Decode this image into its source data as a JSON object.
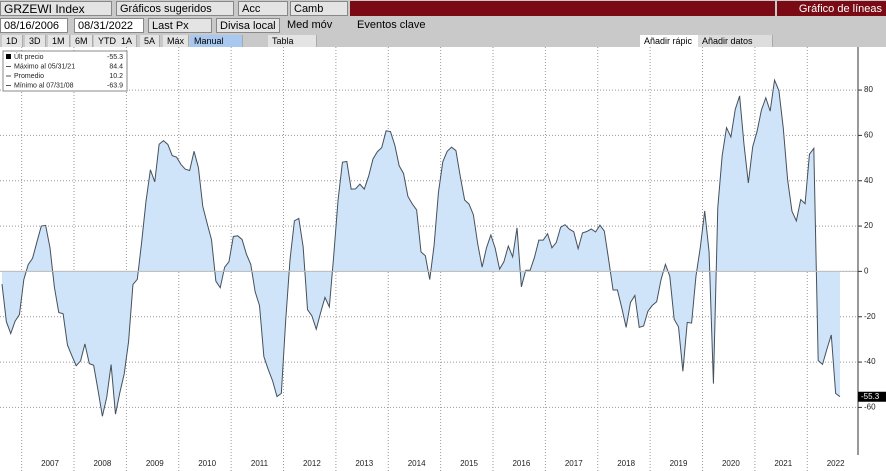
{
  "toolbar": {
    "ticker": "GRZEWI Index",
    "suggested": "Gráficos sugeridos",
    "actions": "Acc",
    "change": "Camb",
    "chart_kind": "Gráfico de líneas",
    "start_date": "08/16/2006",
    "end_date": "08/31/2022",
    "field": "Last Px",
    "currency": "Divisa local",
    "moving_avg": "Med móv",
    "key_events": "Eventos clave",
    "ranges": [
      "1D",
      "3D",
      "1M",
      "6M",
      "YTD",
      "1A",
      "5A",
      "Máx"
    ],
    "manual": "Manual",
    "table": "Tabla",
    "quick_add": "Añadir rápic",
    "add_data": "Añadir datos"
  },
  "chart_data": {
    "type": "area",
    "color": "#45505c",
    "fill": "#cfe4f8",
    "grid": true,
    "legend": [
      {
        "label": "Últ precio",
        "value": -55.3
      },
      {
        "label": "Máximo al 05/31/21",
        "value": 84.4
      },
      {
        "label": "Promedio",
        "value": 10.2
      },
      {
        "label": "Mínimo al 07/31/08",
        "value": -63.9
      }
    ],
    "ylim": [
      -81,
      99
    ],
    "yticks": [
      -60,
      -40,
      -20,
      0,
      20,
      40,
      60,
      80
    ],
    "categories": [
      null,
      null,
      null,
      null,
      null,
      null,
      null,
      null,
      null,
      null,
      null,
      "2007",
      null,
      null,
      null,
      null,
      null,
      null,
      null,
      null,
      null,
      null,
      null,
      "2008",
      null,
      null,
      null,
      null,
      null,
      null,
      null,
      null,
      null,
      null,
      null,
      "2009",
      null,
      null,
      null,
      null,
      null,
      null,
      null,
      null,
      null,
      null,
      null,
      "2010",
      null,
      null,
      null,
      null,
      null,
      null,
      null,
      null,
      null,
      null,
      null,
      "2011",
      null,
      null,
      null,
      null,
      null,
      null,
      null,
      null,
      null,
      null,
      null,
      "2012",
      null,
      null,
      null,
      null,
      null,
      null,
      null,
      null,
      null,
      null,
      null,
      "2013",
      null,
      null,
      null,
      null,
      null,
      null,
      null,
      null,
      null,
      null,
      null,
      "2014",
      null,
      null,
      null,
      null,
      null,
      null,
      null,
      null,
      null,
      null,
      null,
      "2015",
      null,
      null,
      null,
      null,
      null,
      null,
      null,
      null,
      null,
      null,
      null,
      "2016",
      null,
      null,
      null,
      null,
      null,
      null,
      null,
      null,
      null,
      null,
      null,
      "2017",
      null,
      null,
      null,
      null,
      null,
      null,
      null,
      null,
      null,
      null,
      null,
      "2018",
      null,
      null,
      null,
      null,
      null,
      null,
      null,
      null,
      null,
      null,
      null,
      "2019",
      null,
      null,
      null,
      null,
      null,
      null,
      null,
      null,
      null,
      null,
      null,
      "2020",
      null,
      null,
      null,
      null,
      null,
      null,
      null,
      null,
      null,
      null,
      null,
      "2021",
      null,
      null,
      null,
      null,
      null,
      null,
      null,
      null,
      null,
      null,
      null,
      "2022",
      null
    ],
    "values": [
      -5.6,
      -22.2,
      -27.4,
      -22.0,
      -19.0,
      -3.6,
      3.0,
      5.8,
      13.0,
      20.0,
      20.3,
      10.4,
      -6.9,
      -18.1,
      -18.7,
      -32.5,
      -37.2,
      -41.6,
      -39.5,
      -32.0,
      -40.7,
      -41.4,
      -52.4,
      -63.9,
      -55.5,
      -41.1,
      -63.0,
      -53.5,
      -45.2,
      -31.0,
      -5.8,
      -3.5,
      13.0,
      31.1,
      44.8,
      39.5,
      56.1,
      57.7,
      56.0,
      51.1,
      50.4,
      47.2,
      45.1,
      44.5,
      53.0,
      45.8,
      28.7,
      21.2,
      14.0,
      -4.3,
      -7.2,
      1.8,
      4.3,
      15.4,
      15.7,
      14.1,
      7.6,
      3.1,
      -9.0,
      -15.1,
      -37.6,
      -43.3,
      -48.3,
      -55.2,
      -53.8,
      -21.6,
      5.4,
      22.3,
      23.4,
      10.8,
      -16.9,
      -19.6,
      -25.5,
      -18.2,
      -11.5,
      -15.7,
      6.9,
      31.5,
      48.2,
      48.5,
      36.3,
      36.4,
      38.5,
      36.3,
      42.0,
      49.6,
      52.8,
      54.6,
      62.0,
      61.7,
      55.7,
      46.6,
      43.2,
      33.1,
      29.8,
      27.1,
      8.6,
      6.9,
      -3.6,
      11.5,
      34.9,
      48.4,
      53.0,
      54.8,
      53.3,
      41.9,
      31.5,
      29.7,
      25.0,
      12.1,
      1.9,
      10.4,
      16.1,
      10.2,
      1.0,
      4.3,
      11.2,
      6.4,
      19.2,
      -6.8,
      0.5,
      0.5,
      6.2,
      13.8,
      13.8,
      16.6,
      10.4,
      12.8,
      19.5,
      20.6,
      18.6,
      17.5,
      10.0,
      17.0,
      17.6,
      18.7,
      17.4,
      20.4,
      17.8,
      5.1,
      -8.2,
      -8.2,
      -16.1,
      -24.7,
      -13.7,
      -10.6,
      -24.7,
      -24.1,
      -17.5,
      -15.0,
      -13.4,
      -3.6,
      3.1,
      -2.1,
      -21.1,
      -24.5,
      -44.1,
      -22.5,
      -22.8,
      -2.1,
      10.7,
      26.7,
      8.7,
      -49.5,
      28.2,
      51.0,
      63.4,
      59.3,
      71.5,
      77.4,
      56.1,
      39.0,
      55.0,
      61.8,
      71.2,
      76.6,
      70.7,
      84.4,
      79.8,
      63.3,
      40.4,
      26.5,
      22.3,
      31.7,
      29.9,
      51.7,
      54.3,
      -39.3,
      -41.0,
      -34.3,
      -28.0,
      -53.8,
      -55.3
    ]
  }
}
